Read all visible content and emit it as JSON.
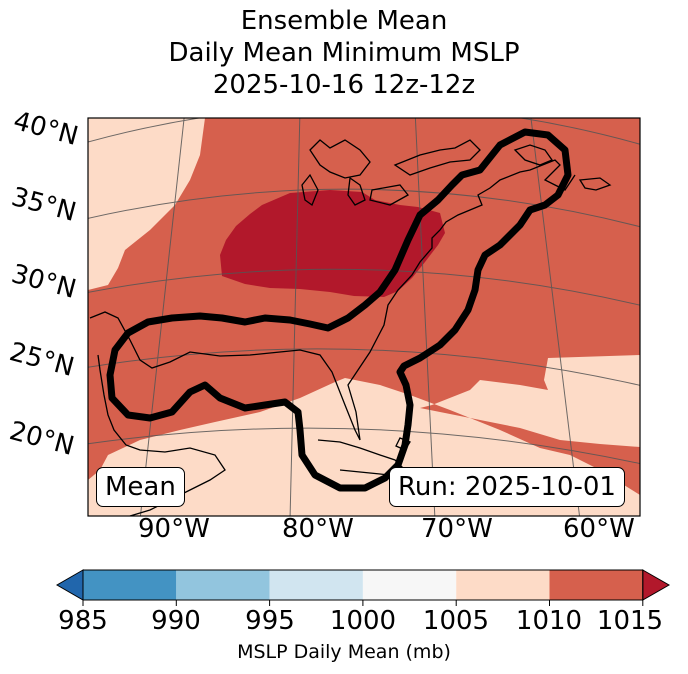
{
  "title": {
    "line1": "Ensemble Mean",
    "line2": "Daily Mean Minimum MSLP",
    "line3": "2025-10-16 12z-12z"
  },
  "map": {
    "lat_labels": [
      "40°N",
      "35°N",
      "30°N",
      "25°N",
      "20°N"
    ],
    "lon_labels": [
      "90°W",
      "80°W",
      "70°W",
      "60°W"
    ],
    "mean_badge": "Mean",
    "run_badge": "Run: 2025-10-01",
    "colors": {
      "below_1010": "#fddbc7",
      "1010_1015": "#d6604d",
      "above_1015": "#b2182b",
      "contour": "#000000",
      "coast": "#000000",
      "grid": "#555555"
    }
  },
  "colorbar": {
    "ticks": [
      "985",
      "990",
      "995",
      "1000",
      "1005",
      "1010",
      "1015"
    ],
    "label": "MSLP Daily Mean (mb)",
    "colors": [
      "#2166ac",
      "#4393c3",
      "#92c5de",
      "#d1e5f0",
      "#f7f7f7",
      "#fddbc7",
      "#d6604d",
      "#b2182b"
    ]
  }
}
